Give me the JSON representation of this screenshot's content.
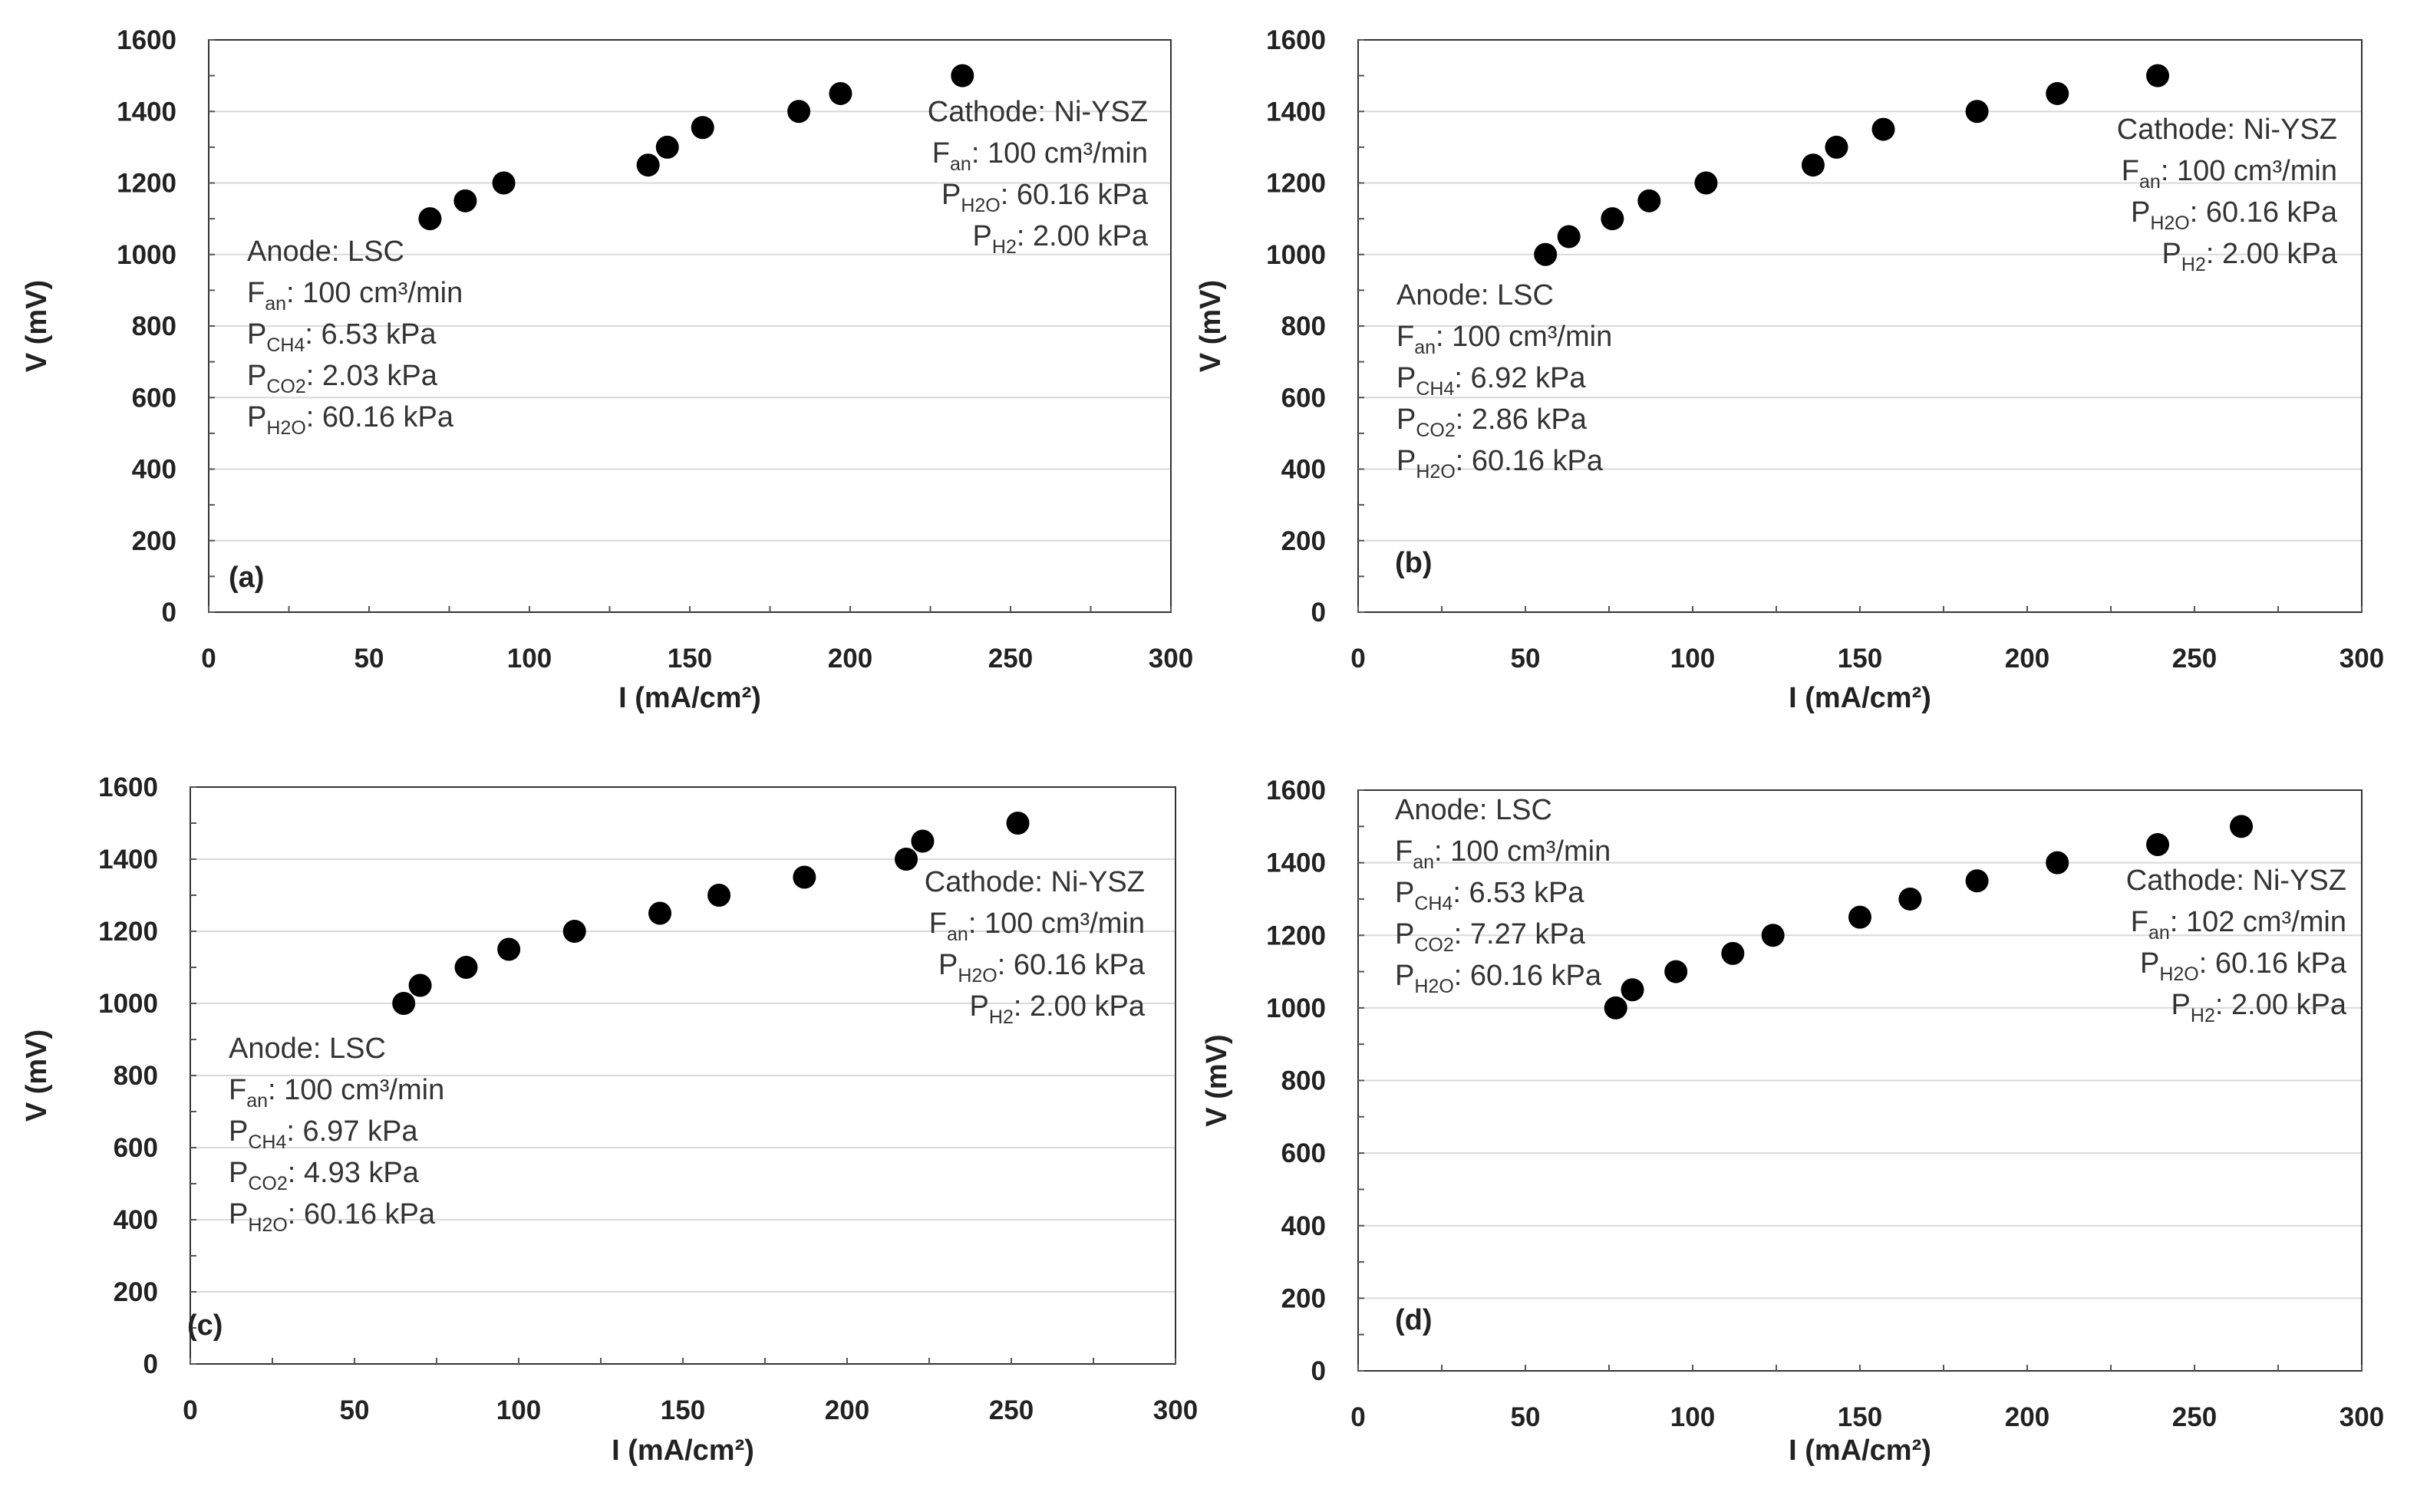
{
  "figure_title": "",
  "colors": {
    "marker": "#000000",
    "grid": "#d9d9d9",
    "frame": "#333333",
    "text": "#333333"
  },
  "chart_data": [
    {
      "type": "scatter",
      "panel": "(a)",
      "xlabel": "I (mA/cm²)",
      "ylabel": "V (mV)",
      "xlim": [
        0,
        300
      ],
      "ylim": [
        0,
        1600
      ],
      "xticks": [
        "0",
        "50",
        "100",
        "150",
        "200",
        "250",
        "300"
      ],
      "yticks": [
        "0",
        "200",
        "400",
        "600",
        "800",
        "1000",
        "1200",
        "1400",
        "1600"
      ],
      "x": [
        69,
        80,
        92,
        137,
        143,
        154,
        184,
        197,
        235
      ],
      "y": [
        1100,
        1150,
        1200,
        1250,
        1300,
        1355,
        1400,
        1450,
        1500
      ],
      "anode": {
        "title": "Anode: LSC",
        "lines": [
          {
            "sym": "F",
            "sub": "an",
            "val": ": 100 cm³/min"
          },
          {
            "sym": "P",
            "sub": "CH4",
            "val": ": 6.53 kPa"
          },
          {
            "sym": "P",
            "sub": "CO2",
            "val": ": 2.03 kPa"
          },
          {
            "sym": "P",
            "sub": "H2O",
            "val": ": 60.16 kPa"
          }
        ]
      },
      "cathode": {
        "title": "Cathode: Ni-YSZ",
        "lines": [
          {
            "sym": "F",
            "sub": "an",
            "val": ": 100 cm³/min"
          },
          {
            "sym": "P",
            "sub": "H2O",
            "val": ": 60.16 kPa"
          },
          {
            "sym": "P",
            "sub": "H2",
            "val": ": 2.00 kPa"
          }
        ]
      }
    },
    {
      "type": "scatter",
      "panel": "(b)",
      "xlabel": "I (mA/cm²)",
      "ylabel": "V (mV)",
      "xlim": [
        0,
        300
      ],
      "ylim": [
        0,
        1600
      ],
      "xticks": [
        "0",
        "50",
        "100",
        "150",
        "200",
        "250",
        "300"
      ],
      "yticks": [
        "0",
        "200",
        "400",
        "600",
        "800",
        "1000",
        "1200",
        "1400",
        "1600"
      ],
      "x": [
        56,
        63,
        76,
        87,
        104,
        136,
        143,
        157,
        185,
        209,
        239
      ],
      "y": [
        1000,
        1050,
        1100,
        1150,
        1200,
        1250,
        1300,
        1350,
        1400,
        1450,
        1500
      ],
      "anode": {
        "title": "Anode: LSC",
        "lines": [
          {
            "sym": "F",
            "sub": "an",
            "val": ": 100 cm³/min"
          },
          {
            "sym": "P",
            "sub": "CH4",
            "val": ": 6.92 kPa"
          },
          {
            "sym": "P",
            "sub": "CO2",
            "val": ": 2.86 kPa"
          },
          {
            "sym": "P",
            "sub": "H2O",
            "val": ": 60.16 kPa"
          }
        ]
      },
      "cathode": {
        "title": "Cathode: Ni-YSZ",
        "lines": [
          {
            "sym": "F",
            "sub": "an",
            "val": ": 100 cm³/min"
          },
          {
            "sym": "P",
            "sub": "H2O",
            "val": ": 60.16 kPa"
          },
          {
            "sym": "P",
            "sub": "H2",
            "val": ": 2.00 kPa"
          }
        ]
      }
    },
    {
      "type": "scatter",
      "panel": "(c)",
      "xlabel": "I (mA/cm²)",
      "ylabel": "V (mV)",
      "xlim": [
        0,
        300
      ],
      "ylim": [
        0,
        1600
      ],
      "xticks": [
        "0",
        "50",
        "100",
        "150",
        "200",
        "250",
        "300"
      ],
      "yticks": [
        "0",
        "200",
        "400",
        "600",
        "800",
        "1000",
        "1200",
        "1400",
        "1600"
      ],
      "x": [
        65,
        70,
        84,
        97,
        117,
        143,
        161,
        187,
        218,
        223,
        252
      ],
      "y": [
        1000,
        1050,
        1100,
        1150,
        1200,
        1250,
        1300,
        1350,
        1400,
        1450,
        1500
      ],
      "anode": {
        "title": "Anode: LSC",
        "lines": [
          {
            "sym": "F",
            "sub": "an",
            "val": ": 100 cm³/min"
          },
          {
            "sym": "P",
            "sub": "CH4",
            "val": ": 6.97 kPa"
          },
          {
            "sym": "P",
            "sub": "CO2",
            "val": ": 4.93 kPa"
          },
          {
            "sym": "P",
            "sub": "H2O",
            "val": ": 60.16 kPa"
          }
        ]
      },
      "cathode": {
        "title": "Cathode: Ni-YSZ",
        "lines": [
          {
            "sym": "F",
            "sub": "an",
            "val": ": 100 cm³/min"
          },
          {
            "sym": "P",
            "sub": "H2O",
            "val": ": 60.16 kPa"
          },
          {
            "sym": "P",
            "sub": "H2",
            "val": ": 2.00 kPa"
          }
        ]
      }
    },
    {
      "type": "scatter",
      "panel": "(d)",
      "xlabel": "I (mA/cm²)",
      "ylabel": "V (mV)",
      "xlim": [
        0,
        300
      ],
      "ylim": [
        0,
        1600
      ],
      "xticks": [
        "0",
        "50",
        "100",
        "150",
        "200",
        "250",
        "300"
      ],
      "yticks": [
        "0",
        "200",
        "400",
        "600",
        "800",
        "1000",
        "1200",
        "1400",
        "1600"
      ],
      "x": [
        77,
        82,
        95,
        112,
        124,
        150,
        165,
        185,
        209,
        239,
        264
      ],
      "y": [
        1000,
        1050,
        1100,
        1150,
        1200,
        1250,
        1300,
        1350,
        1400,
        1450,
        1500
      ],
      "anode": {
        "title": "Anode: LSC",
        "lines": [
          {
            "sym": "F",
            "sub": "an",
            "val": ": 100 cm³/min"
          },
          {
            "sym": "P",
            "sub": "CH4",
            "val": ": 6.53 kPa"
          },
          {
            "sym": "P",
            "sub": "CO2",
            "val": ": 7.27 kPa"
          },
          {
            "sym": "P",
            "sub": "H2O",
            "val": ": 60.16 kPa"
          }
        ]
      },
      "cathode": {
        "title": "Cathode: Ni-YSZ",
        "lines": [
          {
            "sym": "F",
            "sub": "an",
            "val": ": 102 cm³/min"
          },
          {
            "sym": "P",
            "sub": "H2O",
            "val": ": 60.16 kPa"
          },
          {
            "sym": "P",
            "sub": "H2",
            "val": ": 2.00 kPa"
          }
        ]
      }
    }
  ]
}
